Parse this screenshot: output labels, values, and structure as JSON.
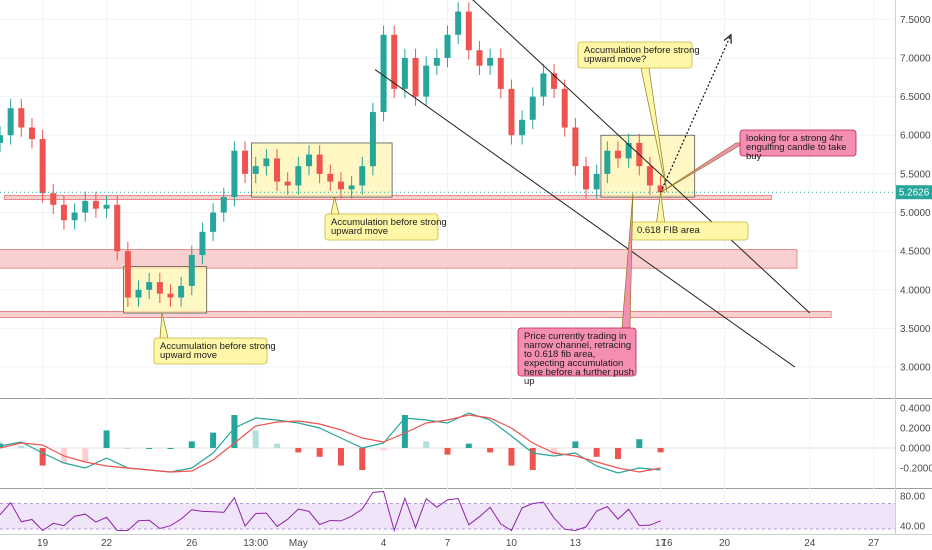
{
  "chart_data": {
    "type": "candlestick",
    "instrument_note": "",
    "price": {
      "ylim": [
        2.6,
        7.75
      ],
      "yticks": [
        "7.5000",
        "7.0000",
        "6.5000",
        "6.0000",
        "5.5000",
        "5.0000",
        "4.5000",
        "4.0000",
        "3.5000",
        "3.0000"
      ],
      "ytick_values": [
        7.5,
        7.0,
        6.5,
        6.0,
        5.5,
        5.0,
        4.5,
        4.0,
        3.5,
        3.0
      ],
      "last_price_label": "5.2626",
      "last_price": 5.2626,
      "series": [
        {
          "day": 17.0,
          "close": 6.0
        },
        {
          "day": 17.5,
          "close": 6.35
        },
        {
          "day": 18.0,
          "close": 6.1
        },
        {
          "day": 18.5,
          "close": 5.95
        },
        {
          "day": 19.0,
          "close": 5.25
        },
        {
          "day": 19.5,
          "close": 5.1
        },
        {
          "day": 20.0,
          "close": 4.9
        },
        {
          "day": 20.5,
          "close": 5.0
        },
        {
          "day": 21.0,
          "close": 5.15
        },
        {
          "day": 21.5,
          "close": 5.05
        },
        {
          "day": 22.0,
          "close": 5.1
        },
        {
          "day": 22.5,
          "close": 4.5
        },
        {
          "day": 23.0,
          "close": 3.9
        },
        {
          "day": 23.5,
          "close": 4.0
        },
        {
          "day": 24.0,
          "close": 4.1
        },
        {
          "day": 24.5,
          "close": 3.95
        },
        {
          "day": 25.0,
          "close": 3.9
        },
        {
          "day": 25.5,
          "close": 4.05
        },
        {
          "day": 26.0,
          "close": 4.45
        },
        {
          "day": 26.5,
          "close": 4.75
        },
        {
          "day": 27.0,
          "close": 5.0
        },
        {
          "day": 27.5,
          "close": 5.2
        },
        {
          "day": 28.0,
          "close": 5.8
        },
        {
          "day": 28.5,
          "close": 5.5
        },
        {
          "day": 29.0,
          "close": 5.6
        },
        {
          "day": 29.5,
          "close": 5.7
        },
        {
          "day": 30.0,
          "close": 5.4
        },
        {
          "day": 30.5,
          "close": 5.35
        },
        {
          "day": 31.0,
          "close": 5.6
        },
        {
          "day": 31.5,
          "close": 5.75
        },
        {
          "day": 32.0,
          "close": 5.5
        },
        {
          "day": 32.5,
          "close": 5.4
        },
        {
          "day": 33.0,
          "close": 5.3
        },
        {
          "day": 33.5,
          "close": 5.35
        },
        {
          "day": 34.0,
          "close": 5.6
        },
        {
          "day": 34.5,
          "close": 6.3
        },
        {
          "day": 35.0,
          "close": 7.3
        },
        {
          "day": 35.5,
          "close": 6.6
        },
        {
          "day": 36.0,
          "close": 7.0
        },
        {
          "day": 36.5,
          "close": 6.5
        },
        {
          "day": 37.0,
          "close": 6.9
        },
        {
          "day": 37.5,
          "close": 7.0
        },
        {
          "day": 38.0,
          "close": 7.3
        },
        {
          "day": 38.5,
          "close": 7.6
        },
        {
          "day": 39.0,
          "close": 7.1
        },
        {
          "day": 39.5,
          "close": 6.9
        },
        {
          "day": 40.0,
          "close": 7.0
        },
        {
          "day": 40.5,
          "close": 6.6
        },
        {
          "day": 41.0,
          "close": 6.0
        },
        {
          "day": 41.5,
          "close": 6.2
        },
        {
          "day": 42.0,
          "close": 6.5
        },
        {
          "day": 42.5,
          "close": 6.8
        },
        {
          "day": 43.0,
          "close": 6.6
        },
        {
          "day": 43.5,
          "close": 6.1
        },
        {
          "day": 44.0,
          "close": 5.6
        },
        {
          "day": 44.5,
          "close": 5.3
        },
        {
          "day": 45.0,
          "close": 5.5
        },
        {
          "day": 45.5,
          "close": 5.8
        },
        {
          "day": 46.0,
          "close": 5.7
        },
        {
          "day": 46.5,
          "close": 5.9
        },
        {
          "day": 47.0,
          "close": 5.6
        },
        {
          "day": 47.5,
          "close": 5.35
        },
        {
          "day": 48.0,
          "close": 5.26
        }
      ]
    },
    "x_ticks": [
      "19",
      "22",
      "26",
      "13:00",
      "May",
      "4",
      "7",
      "10",
      "13",
      "17",
      "20",
      "24",
      "27"
    ],
    "x_tick_days": [
      19,
      22,
      26,
      29,
      31,
      35,
      38,
      41,
      44,
      48,
      51,
      55,
      58
    ],
    "current_date_label": "16",
    "zones": [
      {
        "type": "horizontal_band",
        "y_range": [
          5.17,
          5.22
        ],
        "x_range": [
          17.2,
          53.2
        ],
        "color": "#f8c8c8"
      },
      {
        "type": "horizontal_band",
        "y_range": [
          4.28,
          4.52
        ],
        "x_range": [
          15.0,
          54.4
        ],
        "color": "#f8c8c8"
      },
      {
        "type": "horizontal_band",
        "y_range": [
          3.64,
          3.72
        ],
        "x_range": [
          13.6,
          56.0
        ],
        "color": "#f8c8c8"
      },
      {
        "type": "box",
        "y_range": [
          3.7,
          4.3
        ],
        "x_range": [
          22.8,
          26.7
        ],
        "color": "#fff4b0"
      },
      {
        "type": "box",
        "y_range": [
          5.2,
          5.9
        ],
        "x_range": [
          28.8,
          35.4
        ],
        "color": "#fff4b0"
      },
      {
        "type": "box",
        "y_range": [
          5.2,
          6.0
        ],
        "x_range": [
          45.2,
          49.6
        ],
        "color": "#fff4b0"
      }
    ],
    "trend_lines": [
      {
        "from": [
          39.0,
          7.8
        ],
        "to": [
          55.0,
          3.7
        ]
      },
      {
        "from": [
          34.6,
          6.85
        ],
        "to": [
          54.3,
          3.0
        ]
      }
    ],
    "projection_arrow": {
      "from": [
        48.0,
        5.26
      ],
      "to": [
        51.3,
        7.3
      ]
    },
    "annotations": [
      {
        "text": "Accumulation before strong upward move?",
        "anchor": [
          48.3,
          5.26
        ],
        "box_color": "#fff7a8"
      },
      {
        "text": "looking for a strong 4hr engulfing candle to take buy",
        "anchor": [
          48.0,
          5.26
        ],
        "box_color": "#f48fb1"
      },
      {
        "text": "Accumulation before strong upward move",
        "anchor": [
          32.7,
          5.2
        ],
        "box_color": "#fff7a8"
      },
      {
        "text": "0.618 FIB area",
        "anchor": [
          48.0,
          5.26
        ],
        "box_color": "#fff7a8"
      },
      {
        "text": "Accumulation before strong upward move",
        "anchor": [
          24.6,
          3.7
        ],
        "box_color": "#fff7a8"
      },
      {
        "text": "Price currently trading in narrow channel, retracing to 0.618 fib area, expecting accumulation here before a further push up",
        "anchor": [
          46.7,
          5.25
        ],
        "box_color": "#f48fb1"
      }
    ],
    "macd": {
      "ylim": [
        -0.38,
        0.48
      ],
      "yticks": [
        "0.4000",
        "0.2000",
        "0.0000",
        "-0.2000"
      ],
      "ytick_values": [
        0.4,
        0.2,
        0.0,
        -0.2
      ],
      "series": [
        {
          "color": "#26a69a",
          "points": [
            [
              17,
              0.02
            ],
            [
              18,
              0.06
            ],
            [
              19,
              -0.05
            ],
            [
              20,
              -0.15
            ],
            [
              21,
              -0.2
            ],
            [
              22,
              -0.1
            ],
            [
              23,
              -0.2
            ],
            [
              24,
              -0.22
            ],
            [
              25,
              -0.24
            ],
            [
              26,
              -0.2
            ],
            [
              27,
              -0.05
            ],
            [
              28,
              0.2
            ],
            [
              29,
              0.3
            ],
            [
              30,
              0.28
            ],
            [
              31,
              0.25
            ],
            [
              32,
              0.2
            ],
            [
              33,
              0.1
            ],
            [
              34,
              0.0
            ],
            [
              35,
              0.05
            ],
            [
              36,
              0.3
            ],
            [
              37,
              0.28
            ],
            [
              38,
              0.25
            ],
            [
              39,
              0.35
            ],
            [
              40,
              0.28
            ],
            [
              41,
              0.12
            ],
            [
              42,
              -0.05
            ],
            [
              43,
              -0.08
            ],
            [
              44,
              -0.05
            ],
            [
              45,
              -0.18
            ],
            [
              46,
              -0.25
            ],
            [
              47,
              -0.2
            ],
            [
              48,
              -0.22
            ]
          ]
        },
        {
          "color": "#ef5350",
          "points": [
            [
              17,
              0.0
            ],
            [
              18,
              0.05
            ],
            [
              19,
              0.03
            ],
            [
              20,
              -0.08
            ],
            [
              21,
              -0.14
            ],
            [
              22,
              -0.18
            ],
            [
              23,
              -0.2
            ],
            [
              24,
              -0.22
            ],
            [
              25,
              -0.24
            ],
            [
              26,
              -0.23
            ],
            [
              27,
              -0.12
            ],
            [
              28,
              0.05
            ],
            [
              29,
              0.22
            ],
            [
              30,
              0.26
            ],
            [
              31,
              0.27
            ],
            [
              32,
              0.24
            ],
            [
              33,
              0.18
            ],
            [
              34,
              0.1
            ],
            [
              35,
              0.06
            ],
            [
              36,
              0.15
            ],
            [
              37,
              0.25
            ],
            [
              38,
              0.28
            ],
            [
              39,
              0.33
            ],
            [
              40,
              0.3
            ],
            [
              41,
              0.2
            ],
            [
              42,
              0.05
            ],
            [
              43,
              -0.05
            ],
            [
              44,
              -0.08
            ],
            [
              45,
              -0.14
            ],
            [
              46,
              -0.2
            ],
            [
              47,
              -0.24
            ],
            [
              48,
              -0.2
            ]
          ]
        }
      ]
    },
    "rsi": {
      "ylim": [
        32,
        88
      ],
      "yticks": [
        "80.00",
        "40.00"
      ],
      "ytick_values": [
        80,
        40
      ],
      "band": [
        36,
        70
      ]
    }
  }
}
